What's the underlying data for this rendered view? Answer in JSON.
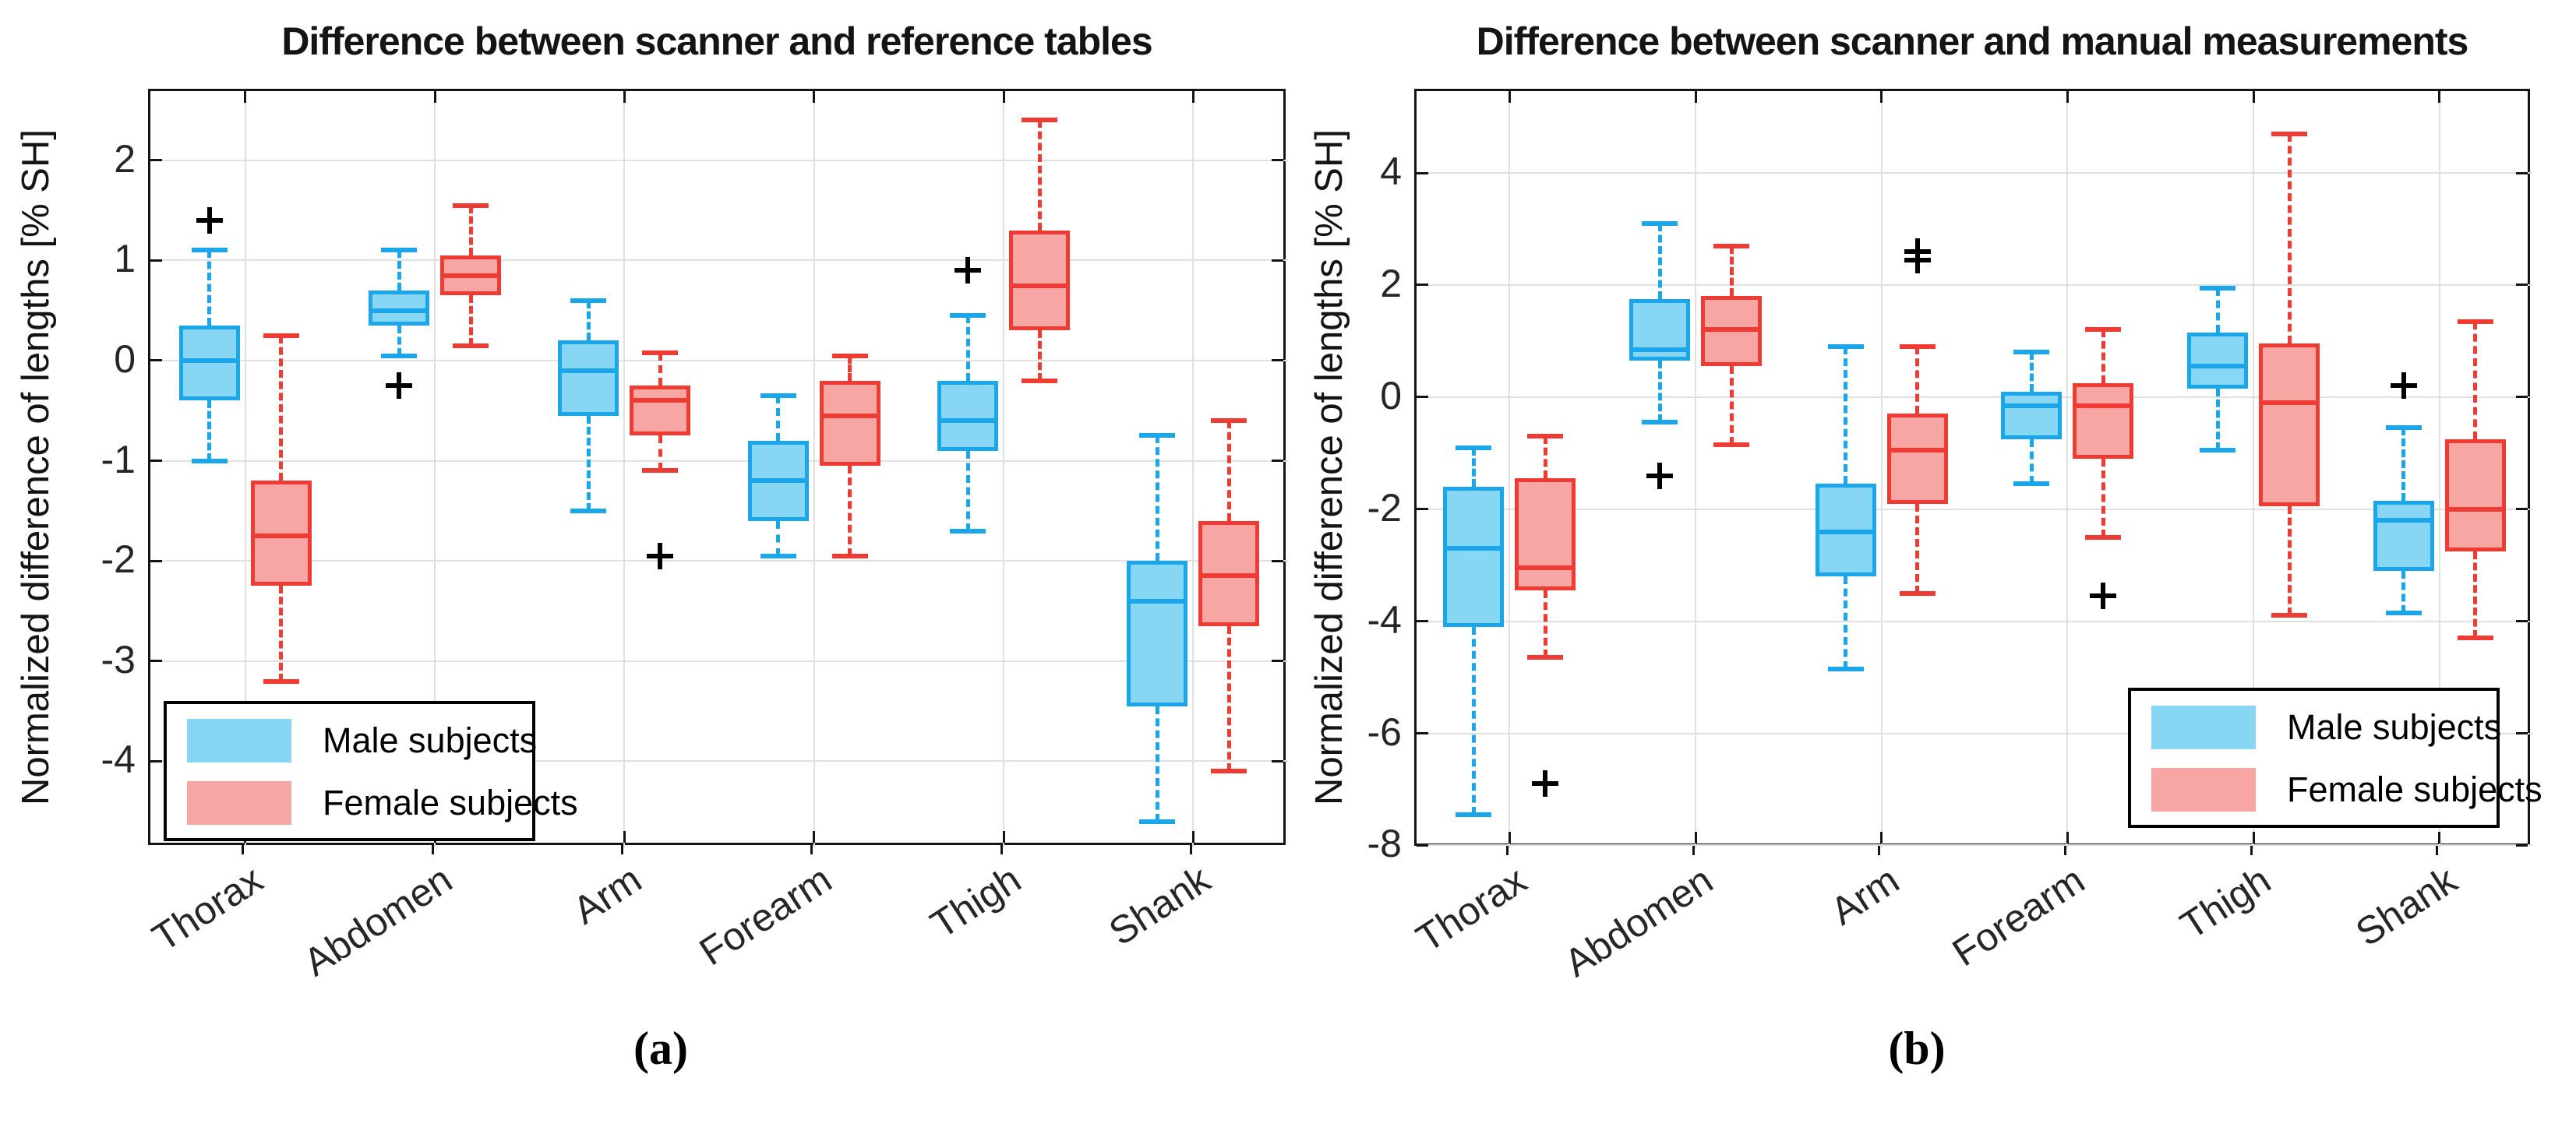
{
  "colors": {
    "male_fill": "#87D6F4",
    "male_edge": "#1BA6E9",
    "female_fill": "#F8A6A3",
    "female_edge": "#EE3B33",
    "outlier": "#000000",
    "grid": "#E0E0E0",
    "axis": "#141414"
  },
  "legend": {
    "male_label": "Male subjects",
    "female_label": "Female subjects"
  },
  "captions": {
    "a": "(a)",
    "b": "(b)"
  },
  "chart_data": [
    {
      "type": "boxplot",
      "panel": "a",
      "title": "Difference between scanner and reference tables",
      "ylabel": "Normalized difference of lengths [% SH]",
      "categories": [
        "Thorax",
        "Abdomen",
        "Arm",
        "Forearm",
        "Thigh",
        "Shank"
      ],
      "yticks": [
        2,
        1,
        0,
        -1,
        -2,
        -3,
        -4
      ],
      "ylim": [
        -4.86,
        2.69
      ],
      "grid": true,
      "legend_position": "bottom-left",
      "series": [
        {
          "name": "Male subjects",
          "boxes": [
            {
              "whislo": -1.0,
              "q1": -0.4,
              "med": 0.0,
              "q3": 0.35,
              "whishi": 1.1,
              "outliers": [
                1.4
              ]
            },
            {
              "whislo": 0.05,
              "q1": 0.35,
              "med": 0.5,
              "q3": 0.7,
              "whishi": 1.1,
              "outliers": [
                -0.25
              ]
            },
            {
              "whislo": -1.5,
              "q1": -0.55,
              "med": -0.1,
              "q3": 0.2,
              "whishi": 0.6,
              "outliers": []
            },
            {
              "whislo": -1.95,
              "q1": -1.6,
              "med": -1.2,
              "q3": -0.8,
              "whishi": -0.35,
              "outliers": []
            },
            {
              "whislo": -1.7,
              "q1": -0.9,
              "med": -0.6,
              "q3": -0.2,
              "whishi": 0.45,
              "outliers": [
                0.9
              ]
            },
            {
              "whislo": -4.6,
              "q1": -3.45,
              "med": -2.4,
              "q3": -2.0,
              "whishi": -0.75,
              "outliers": []
            }
          ]
        },
        {
          "name": "Female subjects",
          "boxes": [
            {
              "whislo": -3.2,
              "q1": -2.25,
              "med": -1.75,
              "q3": -1.2,
              "whishi": 0.25,
              "outliers": []
            },
            {
              "whislo": 0.15,
              "q1": 0.65,
              "med": 0.85,
              "q3": 1.05,
              "whishi": 1.55,
              "outliers": []
            },
            {
              "whislo": -1.1,
              "q1": -0.75,
              "med": -0.4,
              "q3": -0.25,
              "whishi": 0.08,
              "outliers": [
                -1.95
              ]
            },
            {
              "whislo": -1.95,
              "q1": -1.05,
              "med": -0.55,
              "q3": -0.2,
              "whishi": 0.05,
              "outliers": []
            },
            {
              "whislo": -0.2,
              "q1": 0.3,
              "med": 0.75,
              "q3": 1.3,
              "whishi": 2.4,
              "outliers": []
            },
            {
              "whislo": -4.1,
              "q1": -2.65,
              "med": -2.15,
              "q3": -1.6,
              "whishi": -0.6,
              "outliers": []
            }
          ]
        }
      ]
    },
    {
      "type": "boxplot",
      "panel": "b",
      "title": "Difference between scanner and manual measurements",
      "ylabel": "Normalized difference of lengths [% SH]",
      "categories": [
        "Thorax",
        "Abdomen",
        "Arm",
        "Forearm",
        "Thigh",
        "Shank"
      ],
      "yticks": [
        4,
        2,
        0,
        -2,
        -4,
        -6,
        -8
      ],
      "ylim": [
        -8.05,
        5.46
      ],
      "grid": true,
      "legend_position": "bottom-right",
      "series": [
        {
          "name": "Male subjects",
          "boxes": [
            {
              "whislo": -7.45,
              "q1": -4.1,
              "med": -2.7,
              "q3": -1.6,
              "whishi": -0.9,
              "outliers": []
            },
            {
              "whislo": -0.45,
              "q1": 0.65,
              "med": 0.85,
              "q3": 1.75,
              "whishi": 3.1,
              "outliers": [
                -1.4
              ]
            },
            {
              "whislo": -4.85,
              "q1": -3.2,
              "med": -2.4,
              "q3": -1.55,
              "whishi": 0.9,
              "outliers": []
            },
            {
              "whislo": -1.55,
              "q1": -0.75,
              "med": -0.15,
              "q3": 0.1,
              "whishi": 0.8,
              "outliers": []
            },
            {
              "whislo": -0.95,
              "q1": 0.15,
              "med": 0.55,
              "q3": 1.15,
              "whishi": 1.95,
              "outliers": []
            },
            {
              "whislo": -3.85,
              "q1": -3.1,
              "med": -2.2,
              "q3": -1.85,
              "whishi": -0.55,
              "outliers": [
                0.2
              ]
            }
          ]
        },
        {
          "name": "Female subjects",
          "boxes": [
            {
              "whislo": -4.65,
              "q1": -3.45,
              "med": -3.05,
              "q3": -1.45,
              "whishi": -0.7,
              "outliers": [
                -6.9
              ]
            },
            {
              "whislo": -0.85,
              "q1": 0.55,
              "med": 1.2,
              "q3": 1.8,
              "whishi": 2.7,
              "outliers": []
            },
            {
              "whislo": -3.5,
              "q1": -1.9,
              "med": -0.95,
              "q3": -0.3,
              "whishi": 0.9,
              "outliers": [
                2.45,
                2.6
              ]
            },
            {
              "whislo": -2.5,
              "q1": -1.1,
              "med": -0.15,
              "q3": 0.25,
              "whishi": 1.2,
              "outliers": [
                -3.55
              ]
            },
            {
              "whislo": -3.9,
              "q1": -1.95,
              "med": -0.1,
              "q3": 0.95,
              "whishi": 4.7,
              "outliers": []
            },
            {
              "whislo": -4.3,
              "q1": -2.75,
              "med": -2.0,
              "q3": -0.75,
              "whishi": 1.35,
              "outliers": []
            }
          ]
        }
      ]
    }
  ]
}
